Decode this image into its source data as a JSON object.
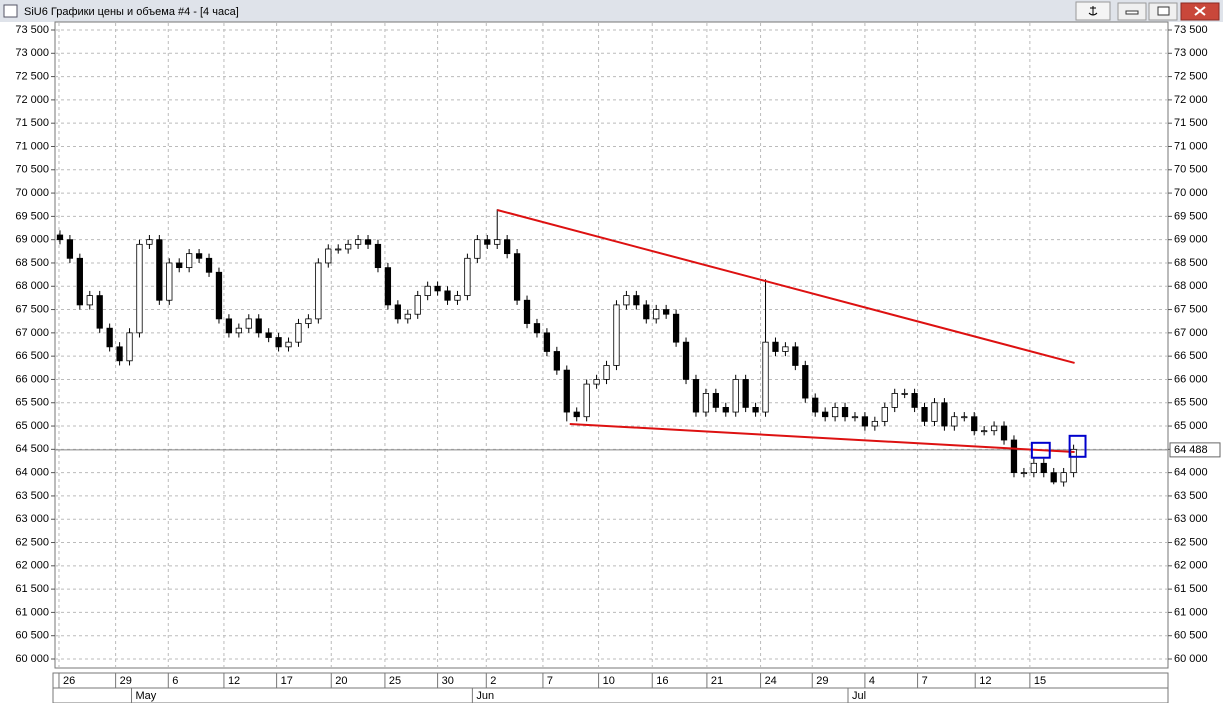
{
  "window": {
    "title": "SiU6 Графики цены и объема #4 - [4 часа]"
  },
  "chart_data": {
    "type": "candlestick",
    "open": [
      69100,
      69000,
      68600,
      67600,
      67800,
      67100,
      66700,
      66400,
      67000,
      68900,
      69000,
      67700,
      68500,
      68400,
      68700,
      68600,
      68300,
      67300,
      67000,
      67100,
      67300,
      67000,
      66900,
      66700,
      66800,
      67200,
      67300,
      68500,
      68800,
      68800,
      68900,
      69000,
      68900,
      68400,
      67600,
      67300,
      67400,
      67800,
      68000,
      67900,
      67700,
      67800,
      68600,
      69000,
      68900,
      69000,
      68700,
      67700,
      67200,
      67000,
      66600,
      66200,
      65300,
      65200,
      65900,
      66000,
      66300,
      67600,
      67800,
      67600,
      67300,
      67500,
      67400,
      66800,
      66000,
      65300,
      65700,
      65400,
      65300,
      66000,
      65400,
      65300,
      66800,
      66600,
      66700,
      66300,
      65600,
      65300,
      65200,
      65400,
      65200,
      65200,
      65000,
      65100,
      65400,
      65700,
      65700,
      65400,
      65100,
      65500,
      65000,
      65200,
      65200,
      64900,
      64900,
      65000,
      64700,
      64000,
      64000,
      64200,
      64000,
      63800,
      64000
    ],
    "high": [
      69200,
      69100,
      68700,
      67900,
      67900,
      67200,
      66800,
      67100,
      69000,
      69100,
      69100,
      68600,
      68600,
      68800,
      68800,
      68700,
      68400,
      67400,
      67200,
      67400,
      67400,
      67100,
      67000,
      66900,
      67300,
      67400,
      68600,
      68900,
      68900,
      69000,
      69100,
      69100,
      69000,
      68500,
      67700,
      67500,
      67900,
      68100,
      68100,
      68000,
      67900,
      68700,
      69100,
      69100,
      69650,
      69100,
      68800,
      67800,
      67300,
      67100,
      66700,
      66300,
      65400,
      66000,
      66100,
      66400,
      67700,
      67900,
      67900,
      67700,
      67600,
      67600,
      67500,
      66900,
      66100,
      65800,
      65800,
      65500,
      66100,
      66100,
      65500,
      68150,
      66900,
      66800,
      66800,
      66400,
      65700,
      65400,
      65500,
      65500,
      65300,
      65300,
      65200,
      65500,
      65800,
      65800,
      65800,
      65500,
      65600,
      65600,
      65300,
      65300,
      65300,
      65000,
      65100,
      65100,
      64800,
      64100,
      64300,
      64300,
      64100,
      64100,
      64600
    ],
    "low": [
      68900,
      68500,
      67500,
      67500,
      67000,
      66600,
      66300,
      66300,
      66900,
      68800,
      67600,
      67600,
      68300,
      68300,
      68500,
      68200,
      67200,
      66900,
      66900,
      67000,
      66900,
      66800,
      66600,
      66600,
      66700,
      67100,
      67200,
      68400,
      68700,
      68700,
      68800,
      68800,
      68300,
      67500,
      67200,
      67200,
      67300,
      67700,
      67800,
      67600,
      67600,
      67700,
      68500,
      68800,
      68800,
      68600,
      67600,
      67100,
      66900,
      66500,
      66100,
      65100,
      65100,
      65100,
      65800,
      65900,
      66200,
      67500,
      67500,
      67200,
      67200,
      67300,
      66700,
      65900,
      65200,
      65200,
      65300,
      65200,
      65200,
      65300,
      65200,
      65200,
      66500,
      66500,
      66200,
      65500,
      65200,
      65100,
      65100,
      65100,
      65100,
      64900,
      64900,
      65000,
      65300,
      65600,
      65300,
      65000,
      65000,
      64900,
      64900,
      65100,
      64800,
      64800,
      64800,
      64600,
      63900,
      63900,
      63900,
      63900,
      63750,
      63700,
      63900
    ],
    "close": [
      69000,
      68600,
      67600,
      67800,
      67100,
      66700,
      66400,
      67000,
      68900,
      69000,
      67700,
      68500,
      68400,
      68700,
      68600,
      68300,
      67300,
      67000,
      67100,
      67300,
      67000,
      66900,
      66700,
      66800,
      67200,
      67300,
      68500,
      68800,
      68800,
      68900,
      69000,
      68900,
      68400,
      67600,
      67300,
      67400,
      67800,
      68000,
      67900,
      67700,
      67800,
      68600,
      69000,
      68900,
      69000,
      68700,
      67700,
      67200,
      67000,
      66600,
      66200,
      65300,
      65200,
      65900,
      66000,
      66300,
      67600,
      67800,
      67600,
      67300,
      67500,
      67400,
      66800,
      66000,
      65300,
      65700,
      65400,
      65300,
      66000,
      65400,
      65300,
      66800,
      66600,
      66700,
      66300,
      65600,
      65300,
      65200,
      65400,
      65200,
      65200,
      65000,
      65100,
      65400,
      65700,
      65700,
      65400,
      65100,
      65500,
      65000,
      65200,
      65200,
      64900,
      64900,
      65000,
      64700,
      64000,
      64000,
      64200,
      64000,
      63800,
      64000,
      64500
    ],
    "up_color": "#ffffff",
    "down_color": "#000000",
    "xlim": [
      0,
      112
    ],
    "xticks": [
      {
        "value": 0.4,
        "label": "26"
      },
      {
        "value": 6.1,
        "label": "29"
      },
      {
        "value": 11.4,
        "label": "6"
      },
      {
        "value": 17.0,
        "label": "12"
      },
      {
        "value": 22.3,
        "label": "17"
      },
      {
        "value": 27.8,
        "label": "20"
      },
      {
        "value": 33.2,
        "label": "25"
      },
      {
        "value": 38.5,
        "label": "30"
      },
      {
        "value": 43.4,
        "label": "2"
      },
      {
        "value": 49.1,
        "label": "7"
      },
      {
        "value": 54.7,
        "label": "10"
      },
      {
        "value": 60.1,
        "label": "16"
      },
      {
        "value": 65.6,
        "label": "21"
      },
      {
        "value": 71.0,
        "label": "24"
      },
      {
        "value": 76.2,
        "label": "29"
      },
      {
        "value": 81.5,
        "label": "4"
      },
      {
        "value": 86.8,
        "label": "7"
      },
      {
        "value": 92.6,
        "label": "12"
      },
      {
        "value": 98.1,
        "label": "15"
      }
    ],
    "month_ticks": [
      {
        "value": 7.7,
        "label": "May"
      },
      {
        "value": 42.0,
        "label": "Jun"
      },
      {
        "value": 79.8,
        "label": "Jul"
      }
    ],
    "ylim": [
      60000,
      73500
    ],
    "yticks": [
      {
        "value": 60000,
        "label": "60 000"
      },
      {
        "value": 60500,
        "label": "60 500"
      },
      {
        "value": 61000,
        "label": "61 000"
      },
      {
        "value": 61500,
        "label": "61 500"
      },
      {
        "value": 62000,
        "label": "62 000"
      },
      {
        "value": 62500,
        "label": "62 500"
      },
      {
        "value": 63000,
        "label": "63 000"
      },
      {
        "value": 63500,
        "label": "63 500"
      },
      {
        "value": 64000,
        "label": "64 000"
      },
      {
        "value": 64500,
        "label": "64 500"
      },
      {
        "value": 65000,
        "label": "65 000"
      },
      {
        "value": 65500,
        "label": "65 500"
      },
      {
        "value": 66000,
        "label": "66 000"
      },
      {
        "value": 66500,
        "label": "66 500"
      },
      {
        "value": 67000,
        "label": "67 000"
      },
      {
        "value": 67500,
        "label": "67 500"
      },
      {
        "value": 68000,
        "label": "68 000"
      },
      {
        "value": 68500,
        "label": "68 500"
      },
      {
        "value": 69000,
        "label": "69 000"
      },
      {
        "value": 69500,
        "label": "69 500"
      },
      {
        "value": 70000,
        "label": "70 000"
      },
      {
        "value": 70500,
        "label": "70 500"
      },
      {
        "value": 71000,
        "label": "71 000"
      },
      {
        "value": 71500,
        "label": "71 500"
      },
      {
        "value": 72000,
        "label": "72 000"
      },
      {
        "value": 72500,
        "label": "72 500"
      },
      {
        "value": 73000,
        "label": "73 000"
      },
      {
        "value": 73500,
        "label": "73 500"
      }
    ],
    "grid": true,
    "last_price": {
      "value": 64488,
      "label": "64 488"
    },
    "trend_lines": [
      {
        "x": [
          44.5,
          102.6
        ],
        "y": [
          69637,
          66354
        ],
        "color": "#dd1111"
      },
      {
        "x": [
          51.8,
          102.6
        ],
        "y": [
          65045,
          64444
        ],
        "color": "#dd1111"
      }
    ],
    "boxes": [
      {
        "x": [
          98.3,
          100.1
        ],
        "y": [
          64320,
          64640
        ],
        "color": "#0000cc"
      },
      {
        "x": [
          102.1,
          103.7
        ],
        "y": [
          64340,
          64790
        ],
        "color": "#0000cc"
      }
    ]
  }
}
